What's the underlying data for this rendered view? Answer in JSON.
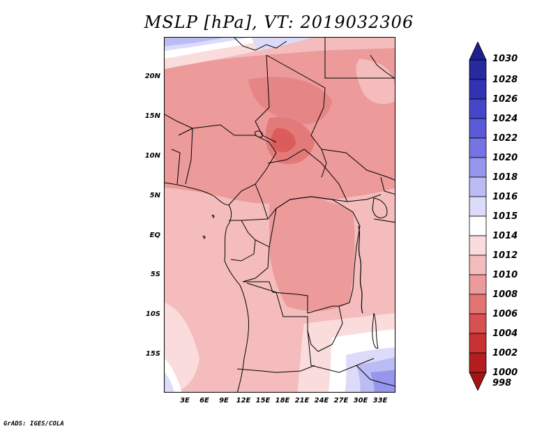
{
  "title": "MSLP [hPa], VT: 2019032306",
  "credit": "GrADS: IGES/COLA",
  "map": {
    "lat_ticks": [
      "20N",
      "15N",
      "10N",
      "5N",
      "EQ",
      "5S",
      "10S",
      "15S"
    ],
    "lon_ticks": [
      "3E",
      "6E",
      "9E",
      "12E",
      "15E",
      "18E",
      "21E",
      "24E",
      "27E",
      "30E",
      "33E"
    ],
    "lon_range_deg": [
      0,
      35
    ],
    "lat_range_deg": [
      -20,
      25
    ]
  },
  "colorbar": {
    "levels": [
      "1030",
      "1028",
      "1026",
      "1024",
      "1022",
      "1020",
      "1018",
      "1016",
      "1015",
      "1014",
      "1012",
      "1010",
      "1008",
      "1006",
      "1004",
      "1002",
      "1000",
      "998"
    ],
    "colors": [
      "#1e1e8c",
      "#2828a0",
      "#3232b4",
      "#4646c8",
      "#5a5ad6",
      "#7474e2",
      "#9696ec",
      "#bcbcf4",
      "#dcdcfa",
      "#ffffff",
      "#fadcdc",
      "#f4bcbc",
      "#ec9a9a",
      "#e27474",
      "#d85050",
      "#c83232",
      "#b41e1e",
      "#a01414"
    ]
  }
}
